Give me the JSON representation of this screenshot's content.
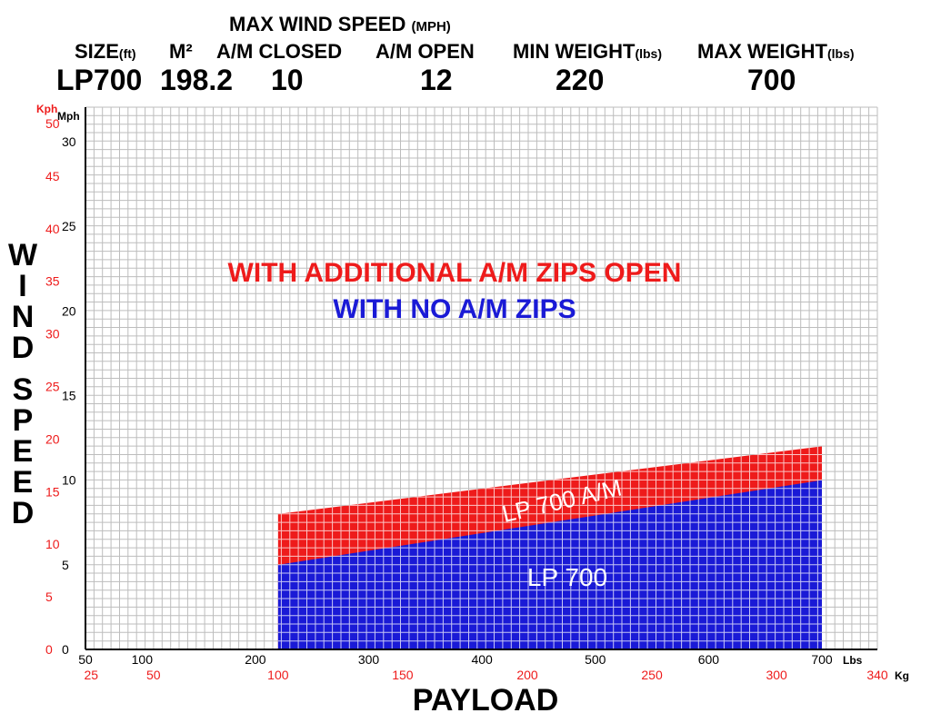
{
  "header": {
    "title": "MAX WIND SPEED",
    "title_unit": "(MPH)",
    "columns": [
      {
        "label": "SIZE",
        "unit": "(ft)",
        "value": "LP700"
      },
      {
        "label": "M²",
        "unit": "",
        "value": "198.2"
      },
      {
        "label": "A/M CLOSED",
        "unit": "",
        "value": "10"
      },
      {
        "label": "A/M OPEN",
        "unit": "",
        "value": "12"
      },
      {
        "label": "MIN WEIGHT",
        "unit": "(lbs)",
        "value": "220"
      },
      {
        "label": "MAX WEIGHT",
        "unit": "(lbs)",
        "value": "700"
      }
    ]
  },
  "chart_data": {
    "type": "area",
    "title": "",
    "xlabel": "PAYLOAD",
    "ylabel": "WIND SPEED",
    "x_unit": "Lbs",
    "x_unit_secondary": "Kg",
    "y_unit": "Mph",
    "y_unit_secondary": "Kph",
    "xlim": [
      50,
      750
    ],
    "ylim": [
      0,
      32
    ],
    "x_ticks": [
      50,
      100,
      200,
      300,
      400,
      500,
      600,
      700
    ],
    "x_ticks_secondary": [
      25,
      50,
      100,
      150,
      200,
      250,
      300,
      340
    ],
    "y_ticks": [
      0,
      5,
      10,
      15,
      20,
      25,
      30
    ],
    "y_ticks_secondary": [
      0,
      5,
      10,
      15,
      20,
      25,
      30,
      35,
      40,
      45,
      50
    ],
    "grid": true,
    "series": [
      {
        "name": "LP 700",
        "color": "#1a1ad6",
        "x": [
          220,
          700
        ],
        "y": [
          5,
          10
        ]
      },
      {
        "name": "LP 700 A/M",
        "color": "#ee1b1b",
        "x": [
          220,
          700
        ],
        "y": [
          8,
          12
        ]
      }
    ],
    "annotations": [
      {
        "text": "WITH ADDITIONAL A/M ZIPS OPEN",
        "color": "#ee1b1b"
      },
      {
        "text": "WITH NO A/M ZIPS",
        "color": "#1a1ad6"
      }
    ]
  },
  "colors": {
    "red": "#ee1b1b",
    "blue": "#1a1ad6",
    "grid": "#bdbdbd"
  }
}
